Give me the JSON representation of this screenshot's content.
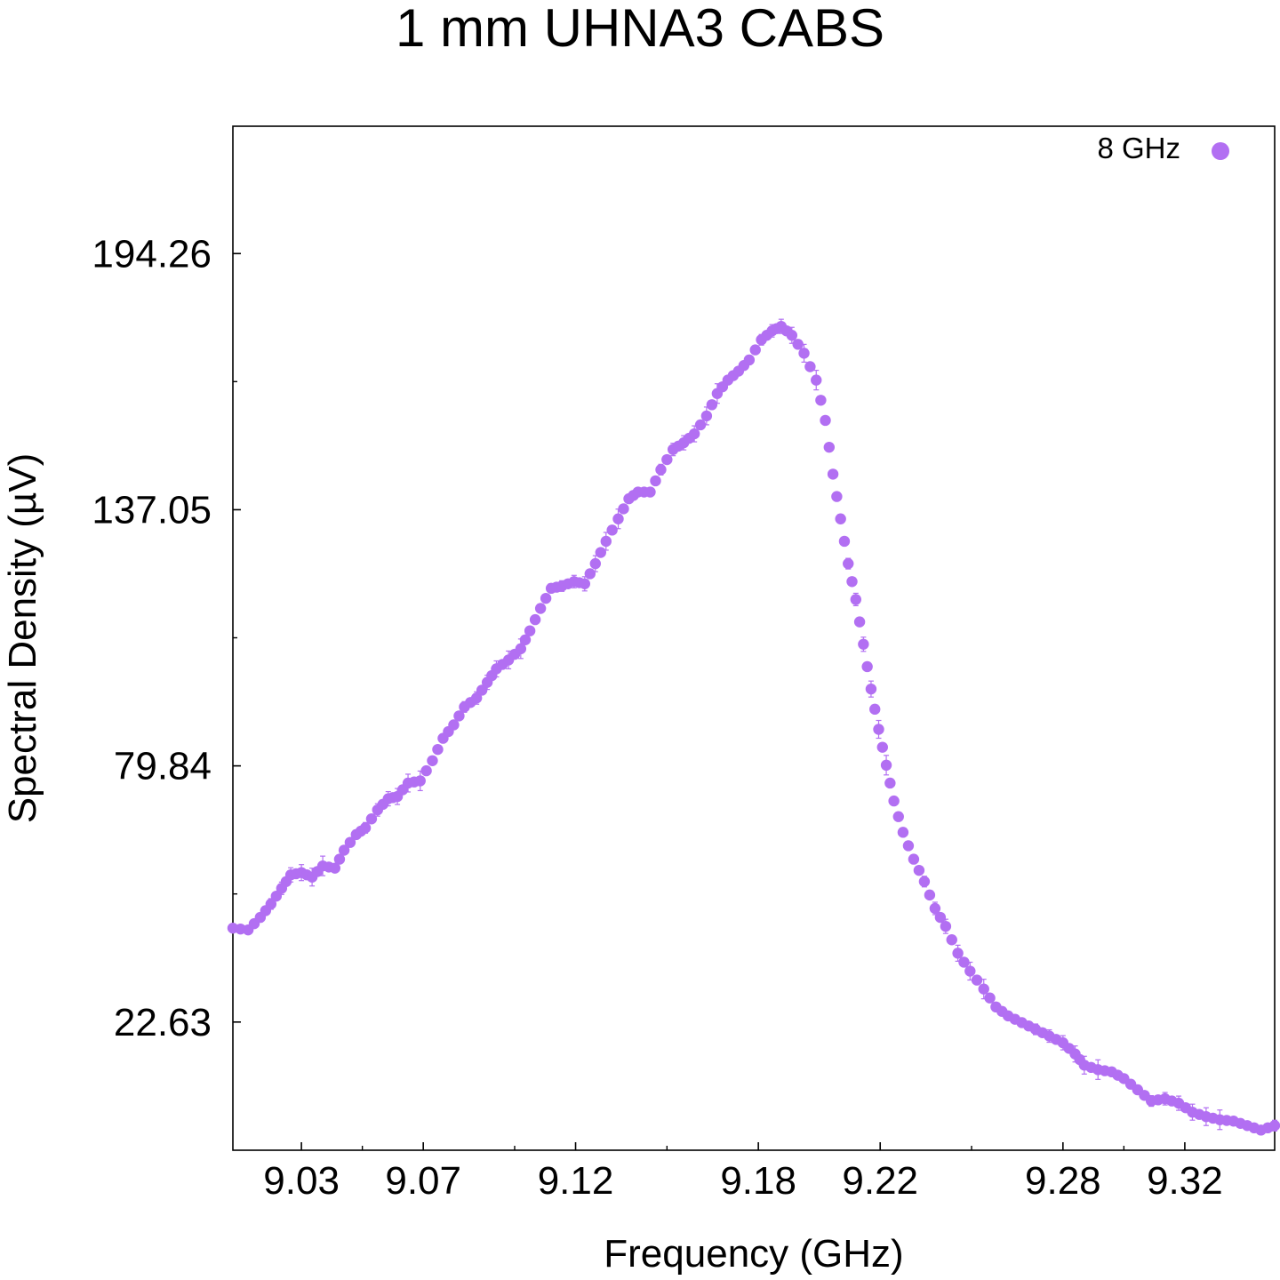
{
  "colors": {
    "series": "#b26ff2",
    "axis": "#000000",
    "background": "#ffffff"
  },
  "chart_data": {
    "type": "scatter",
    "title": "1 mm UHNA3 CABS",
    "xlabel": "Frequency (GHz)",
    "ylabel": "Spectral Density (µV)",
    "xlim": [
      9.0075,
      9.3495
    ],
    "ylim": [
      -6.0,
      222.7
    ],
    "x_ticks": [
      9.03,
      9.07,
      9.12,
      9.18,
      9.22,
      9.28,
      9.32
    ],
    "x_tick_labels": [
      "9.03",
      "9.07",
      "9.12",
      "9.18",
      "9.22",
      "9.28",
      "9.32"
    ],
    "x_minor_ticks": [
      9.05,
      9.1,
      9.15,
      9.25,
      9.3
    ],
    "y_ticks": [
      22.63,
      79.84,
      137.05,
      194.26
    ],
    "y_tick_labels": [
      "22.63",
      "79.84",
      "137.05",
      "194.26"
    ],
    "y_minor_ticks": [
      51.24,
      108.45,
      165.66
    ],
    "legend": {
      "position": "top-right",
      "entries": [
        "8 GHz"
      ]
    },
    "series": [
      {
        "name": "8 GHz",
        "error_bars": true,
        "points": [
          [
            9.0075,
            43.6
          ],
          [
            9.0125,
            43.2
          ],
          [
            9.0165,
            46.0
          ],
          [
            9.02,
            49.0
          ],
          [
            9.0235,
            52.5
          ],
          [
            9.0265,
            55.5
          ],
          [
            9.03,
            56.0
          ],
          [
            9.0335,
            55.0
          ],
          [
            9.037,
            57.5
          ],
          [
            9.041,
            57.0
          ],
          [
            9.044,
            61.0
          ],
          [
            9.048,
            64.5
          ],
          [
            9.051,
            66.0
          ],
          [
            9.055,
            70.0
          ],
          [
            9.0585,
            72.5
          ],
          [
            9.0615,
            73.0
          ],
          [
            9.065,
            76.0
          ],
          [
            9.069,
            76.5
          ],
          [
            9.073,
            81.0
          ],
          [
            9.0765,
            86.0
          ],
          [
            9.08,
            89.0
          ],
          [
            9.0835,
            93.0
          ],
          [
            9.0875,
            95.0
          ],
          [
            9.091,
            98.5
          ],
          [
            9.094,
            101.5
          ],
          [
            9.098,
            103.5
          ],
          [
            9.102,
            106.0
          ],
          [
            9.105,
            110.0
          ],
          [
            9.1085,
            115.0
          ],
          [
            9.112,
            119.5
          ],
          [
            9.1155,
            120.0
          ],
          [
            9.1195,
            121.0
          ],
          [
            9.123,
            120.5
          ],
          [
            9.1265,
            125.0
          ],
          [
            9.13,
            130.0
          ],
          [
            9.134,
            135.0
          ],
          [
            9.1375,
            139.5
          ],
          [
            9.1405,
            141.0
          ],
          [
            9.1445,
            141.0
          ],
          [
            9.148,
            146.0
          ],
          [
            9.152,
            150.5
          ],
          [
            9.1555,
            152.0
          ],
          [
            9.159,
            154.0
          ],
          [
            9.163,
            158.0
          ],
          [
            9.1665,
            163.0
          ],
          [
            9.17,
            166.0
          ],
          [
            9.1735,
            168.0
          ],
          [
            9.177,
            170.5
          ],
          [
            9.181,
            175.0
          ],
          [
            9.1845,
            177.0
          ],
          [
            9.1875,
            178.0
          ],
          [
            9.191,
            176.0
          ],
          [
            9.195,
            172.0
          ],
          [
            9.199,
            166.0
          ],
          [
            9.202,
            157.0
          ],
          [
            9.2045,
            145.0
          ],
          [
            9.207,
            135.0
          ],
          [
            9.2095,
            125.0
          ],
          [
            9.212,
            117.0
          ],
          [
            9.2145,
            107.0
          ],
          [
            9.217,
            97.0
          ],
          [
            9.2195,
            88.0
          ],
          [
            9.222,
            80.0
          ],
          [
            9.2245,
            72.0
          ],
          [
            9.2275,
            65.0
          ],
          [
            9.231,
            59.0
          ],
          [
            9.2345,
            54.0
          ],
          [
            9.238,
            48.0
          ],
          [
            9.2415,
            44.0
          ],
          [
            9.2455,
            38.0
          ],
          [
            9.2495,
            34.0
          ],
          [
            9.254,
            30.0
          ],
          [
            9.258,
            26.0
          ],
          [
            9.262,
            24.0
          ],
          [
            9.2665,
            22.5
          ],
          [
            9.271,
            21.0
          ],
          [
            9.2755,
            19.5
          ],
          [
            9.28,
            18.0
          ],
          [
            9.284,
            15.5
          ],
          [
            9.287,
            13.0
          ],
          [
            9.2915,
            12.0
          ],
          [
            9.296,
            11.5
          ],
          [
            9.3,
            10.0
          ],
          [
            9.3045,
            7.5
          ],
          [
            9.309,
            5.0
          ],
          [
            9.3135,
            5.5
          ],
          [
            9.318,
            4.5
          ],
          [
            9.3225,
            2.5
          ],
          [
            9.327,
            1.5
          ],
          [
            9.3315,
            0.8
          ],
          [
            9.336,
            0.5
          ],
          [
            9.3405,
            -0.5
          ],
          [
            9.345,
            -1.5
          ],
          [
            9.3495,
            -0.5
          ]
        ]
      }
    ]
  }
}
